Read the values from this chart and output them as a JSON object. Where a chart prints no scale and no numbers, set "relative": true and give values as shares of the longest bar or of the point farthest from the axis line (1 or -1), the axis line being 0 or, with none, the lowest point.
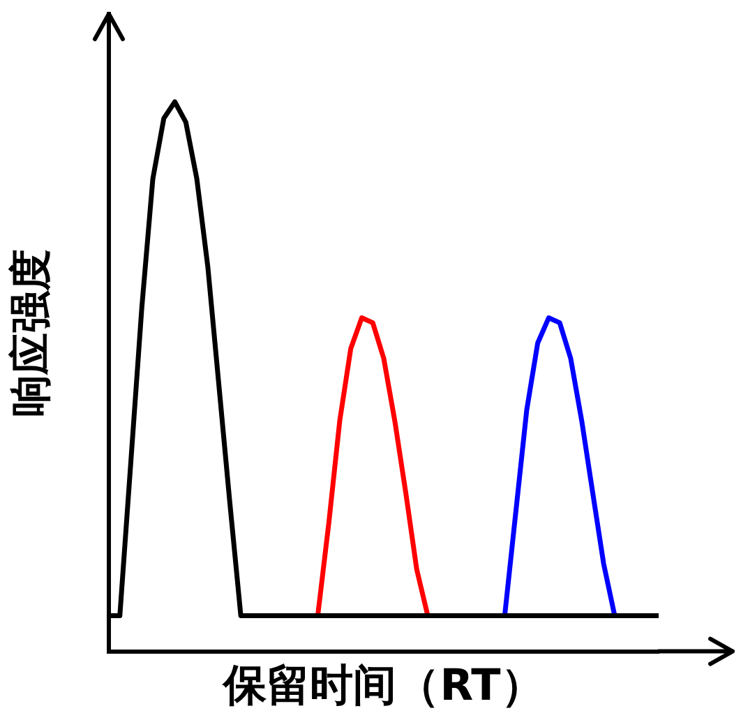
{
  "chart_data": {
    "type": "line",
    "relative": true,
    "xlabel": "保留时间（RT）",
    "ylabel": "响应强度",
    "legend": false,
    "grid": false,
    "marker": "none",
    "line_style": "solid",
    "categories": [
      null,
      null,
      null,
      null,
      null,
      null,
      null,
      null,
      null,
      null,
      null,
      null,
      null,
      null,
      null,
      null,
      null,
      null,
      null,
      null,
      null,
      null,
      null,
      null,
      null,
      null,
      null,
      null,
      null,
      null,
      null,
      null,
      null,
      null,
      null,
      null,
      null,
      null,
      null,
      null,
      null,
      null,
      null,
      null,
      null,
      null,
      null,
      null,
      null,
      null,
      null
    ],
    "series": [
      {
        "color": "#000000",
        "values": [
          0.065,
          0.065,
          0.345,
          0.626,
          0.86,
          0.97,
          1,
          0.963,
          0.86,
          0.7,
          0.486,
          0.271,
          0.065,
          0.065,
          0.065,
          0.065,
          0.065,
          0.065,
          0.065,
          0.065,
          0.065,
          0.065,
          0.065,
          0.065,
          0.065,
          0.065,
          0.065,
          0.065,
          0.065,
          0.065,
          0.065,
          0.065,
          0.065,
          0.065,
          0.065,
          0.065,
          0.065,
          0.065,
          0.065,
          0.065,
          0.065,
          0.065,
          0.065,
          0.065,
          0.065,
          0.065,
          0.065,
          0.065,
          0.065,
          0.065,
          0.065
        ]
      },
      {
        "color": "#ff0000",
        "values": [
          null,
          null,
          null,
          null,
          null,
          null,
          null,
          null,
          null,
          null,
          null,
          null,
          null,
          null,
          null,
          null,
          null,
          null,
          null,
          0.065,
          0.233,
          0.42,
          0.551,
          0.607,
          0.598,
          0.533,
          0.42,
          0.289,
          0.149,
          0.065,
          null,
          null,
          null,
          null,
          null,
          null,
          null,
          null,
          null,
          null,
          null,
          null,
          null,
          null,
          null,
          null,
          null,
          null,
          null,
          null,
          null
        ]
      },
      {
        "color": "#0000ff",
        "values": [
          null,
          null,
          null,
          null,
          null,
          null,
          null,
          null,
          null,
          null,
          null,
          null,
          null,
          null,
          null,
          null,
          null,
          null,
          null,
          null,
          null,
          null,
          null,
          null,
          null,
          null,
          null,
          null,
          null,
          null,
          null,
          null,
          null,
          null,
          null,
          null,
          0.065,
          0.252,
          0.439,
          0.561,
          0.607,
          0.598,
          0.533,
          0.42,
          0.289,
          0.159,
          0.065,
          null,
          null,
          null,
          null
        ]
      }
    ]
  }
}
